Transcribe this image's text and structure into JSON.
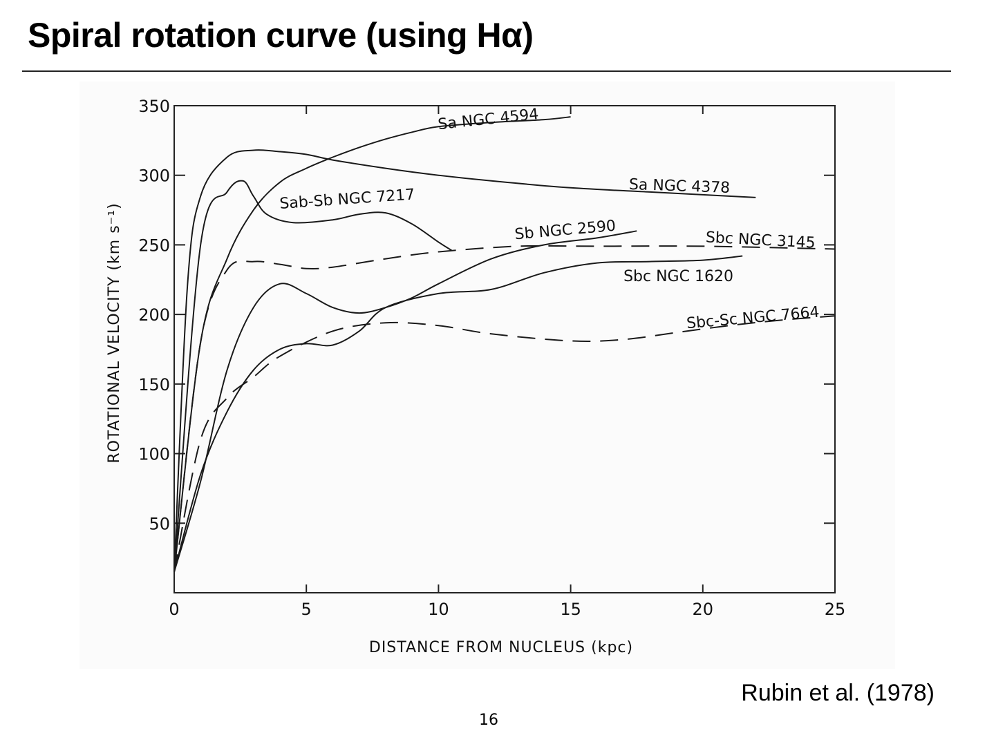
{
  "slide": {
    "title": "Spiral rotation curve (using Hα)",
    "citation": "Rubin et al. (1978)",
    "page_number": "16"
  },
  "chart_data": {
    "type": "line",
    "xlabel": "DISTANCE FROM NUCLEUS (kpc)",
    "ylabel": "ROTATIONAL VELOCITY (km s⁻¹)",
    "xlim": [
      0,
      25
    ],
    "ylim": [
      0,
      350
    ],
    "xticks": [
      0,
      5,
      10,
      15,
      20,
      25
    ],
    "yticks": [
      50,
      100,
      150,
      200,
      250,
      300,
      350
    ],
    "grid": false,
    "series": [
      {
        "name": "Sa NGC 4594",
        "style": "solid",
        "points": [
          [
            0,
            15
          ],
          [
            1,
            180
          ],
          [
            2,
            240
          ],
          [
            3,
            275
          ],
          [
            4,
            295
          ],
          [
            5,
            305
          ],
          [
            6,
            313
          ],
          [
            7,
            320
          ],
          [
            8,
            326
          ],
          [
            9,
            331
          ],
          [
            10,
            335
          ],
          [
            12,
            338
          ],
          [
            14,
            340
          ],
          [
            15,
            342
          ]
        ]
      },
      {
        "name": "Sa NGC 4378",
        "style": "solid",
        "points": [
          [
            0,
            15
          ],
          [
            0.5,
            220
          ],
          [
            1,
            285
          ],
          [
            2,
            313
          ],
          [
            3,
            318
          ],
          [
            4,
            317
          ],
          [
            5,
            315
          ],
          [
            6,
            311
          ],
          [
            8,
            305
          ],
          [
            10,
            300
          ],
          [
            12,
            296
          ],
          [
            15,
            291
          ],
          [
            18,
            288
          ],
          [
            20,
            286
          ],
          [
            22,
            284
          ]
        ]
      },
      {
        "name": "Sab-Sb NGC 7217",
        "style": "solid",
        "points": [
          [
            0,
            15
          ],
          [
            1,
            250
          ],
          [
            2,
            288
          ],
          [
            2.6,
            296
          ],
          [
            3,
            285
          ],
          [
            3.5,
            272
          ],
          [
            4.5,
            266
          ],
          [
            6,
            268
          ],
          [
            7,
            272
          ],
          [
            8,
            273
          ],
          [
            9,
            265
          ],
          [
            10,
            252
          ],
          [
            10.5,
            246
          ]
        ]
      },
      {
        "name": "Sb NGC 2590",
        "style": "solid",
        "points": [
          [
            0,
            15
          ],
          [
            1,
            80
          ],
          [
            2,
            160
          ],
          [
            3,
            205
          ],
          [
            4,
            222
          ],
          [
            5,
            215
          ],
          [
            6,
            205
          ],
          [
            7,
            201
          ],
          [
            8,
            205
          ],
          [
            9,
            212
          ],
          [
            10,
            222
          ],
          [
            12,
            240
          ],
          [
            14,
            250
          ],
          [
            16,
            255
          ],
          [
            17.5,
            260
          ]
        ]
      },
      {
        "name": "Sbc NGC 3145",
        "style": "dashed",
        "points": [
          [
            0,
            15
          ],
          [
            1,
            180
          ],
          [
            2,
            232
          ],
          [
            3,
            238
          ],
          [
            4,
            236
          ],
          [
            5,
            233
          ],
          [
            6,
            234
          ],
          [
            8,
            240
          ],
          [
            10,
            245
          ],
          [
            13,
            249
          ],
          [
            16,
            249
          ],
          [
            20,
            249
          ],
          [
            25,
            247
          ]
        ]
      },
      {
        "name": "Sbc NGC 1620",
        "style": "solid",
        "points": [
          [
            0,
            15
          ],
          [
            1,
            85
          ],
          [
            2,
            130
          ],
          [
            3,
            160
          ],
          [
            4,
            175
          ],
          [
            5,
            179
          ],
          [
            6,
            178
          ],
          [
            7,
            188
          ],
          [
            8,
            205
          ],
          [
            10,
            215
          ],
          [
            12,
            218
          ],
          [
            14,
            230
          ],
          [
            16,
            237
          ],
          [
            18,
            238
          ],
          [
            20,
            239
          ],
          [
            21.5,
            242
          ]
        ]
      },
      {
        "name": "Sbc-Sc NGC 7664",
        "style": "dashed",
        "points": [
          [
            0,
            15
          ],
          [
            1,
            110
          ],
          [
            2,
            140
          ],
          [
            3,
            155
          ],
          [
            4,
            170
          ],
          [
            6,
            188
          ],
          [
            8,
            194
          ],
          [
            10,
            192
          ],
          [
            12,
            186
          ],
          [
            15,
            181
          ],
          [
            17,
            182
          ],
          [
            19,
            187
          ],
          [
            21,
            192
          ],
          [
            23,
            196
          ],
          [
            25,
            199
          ]
        ]
      }
    ],
    "labels": [
      {
        "text": "Sa  NGC 4594",
        "x": 10.0,
        "y": 333,
        "rotate": -6
      },
      {
        "text": "Sa  NGC 4378",
        "x": 17.2,
        "y": 290,
        "rotate": 2
      },
      {
        "text": "Sab-Sb  NGC 7217",
        "x": 4.0,
        "y": 276,
        "rotate": -4
      },
      {
        "text": "NGC 7217",
        "x": 6.6,
        "y": 276,
        "rotate": 20
      },
      {
        "text": "Sb  NGC 2590",
        "x": 12.9,
        "y": 254,
        "rotate": -5
      },
      {
        "text": "Sbc  NGC 3145",
        "x": 20.1,
        "y": 252,
        "rotate": 3
      },
      {
        "text": "Sbc  NGC 1620",
        "x": 17.0,
        "y": 224,
        "rotate": 0
      },
      {
        "text": "Sbc-Sc NGC 7664",
        "x": 19.4,
        "y": 190,
        "rotate": -5
      }
    ]
  }
}
